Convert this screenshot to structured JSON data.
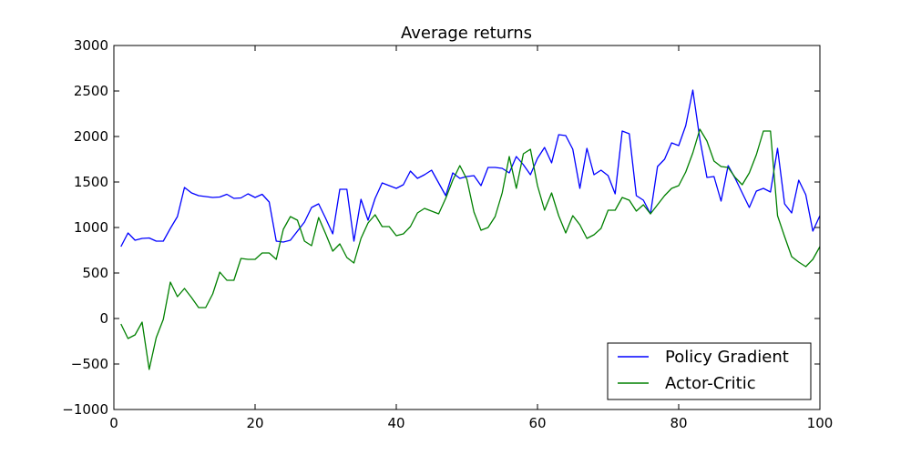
{
  "chart_data": {
    "type": "line",
    "title": "Average returns",
    "xlabel": "",
    "ylabel": "",
    "xlim": [
      0,
      100
    ],
    "ylim": [
      -1000,
      3000
    ],
    "x_ticks": [
      0,
      20,
      40,
      60,
      80,
      100
    ],
    "x_tick_labels": [
      "0",
      "20",
      "40",
      "60",
      "80",
      "100"
    ],
    "y_ticks": [
      -1000,
      -500,
      0,
      500,
      1000,
      1500,
      2000,
      2500,
      3000
    ],
    "y_tick_labels": [
      "−1000",
      "−500",
      "0",
      "500",
      "1000",
      "1500",
      "2000",
      "2500",
      "3000"
    ],
    "grid": false,
    "legend_position": "bottom-right",
    "x": [
      1,
      2,
      3,
      4,
      5,
      6,
      7,
      8,
      9,
      10,
      11,
      12,
      13,
      14,
      15,
      16,
      17,
      18,
      19,
      20,
      21,
      22,
      23,
      24,
      25,
      26,
      27,
      28,
      29,
      30,
      31,
      32,
      33,
      34,
      35,
      36,
      37,
      38,
      39,
      40,
      41,
      42,
      43,
      44,
      45,
      46,
      47,
      48,
      49,
      50,
      51,
      52,
      53,
      54,
      55,
      56,
      57,
      58,
      59,
      60,
      61,
      62,
      63,
      64,
      65,
      66,
      67,
      68,
      69,
      70,
      71,
      72,
      73,
      74,
      75,
      76,
      77,
      78,
      79,
      80,
      81,
      82,
      83,
      84,
      85,
      86,
      87,
      88,
      89,
      90,
      91,
      92,
      93,
      94,
      95,
      96,
      97,
      98,
      99,
      100
    ],
    "series": [
      {
        "name": "Policy Gradient",
        "color": "#0000ff",
        "values": [
          790,
          940,
          860,
          880,
          885,
          850,
          850,
          990,
          1120,
          1440,
          1380,
          1350,
          1340,
          1330,
          1335,
          1365,
          1320,
          1325,
          1370,
          1330,
          1365,
          1280,
          850,
          840,
          860,
          960,
          1060,
          1220,
          1260,
          1100,
          930,
          1420,
          1420,
          850,
          1310,
          1080,
          1320,
          1490,
          1460,
          1430,
          1470,
          1620,
          1540,
          1580,
          1630,
          1490,
          1350,
          1600,
          1540,
          1560,
          1570,
          1460,
          1660,
          1660,
          1650,
          1600,
          1780,
          1690,
          1580,
          1760,
          1880,
          1710,
          2020,
          2010,
          1860,
          1430,
          1870,
          1580,
          1630,
          1570,
          1370,
          2060,
          2030,
          1350,
          1300,
          1150,
          1670,
          1750,
          1930,
          1900,
          2120,
          2510,
          1970,
          1550,
          1560,
          1290,
          1680,
          1540,
          1380,
          1220,
          1400,
          1430,
          1390,
          1870,
          1260,
          1160,
          1520,
          1360,
          960,
          1130
        ]
      },
      {
        "name": "Actor-Critic",
        "color": "#008000",
        "values": [
          -60,
          -220,
          -180,
          -40,
          -560,
          -210,
          -10,
          400,
          240,
          330,
          230,
          120,
          120,
          270,
          510,
          420,
          420,
          660,
          650,
          650,
          720,
          720,
          650,
          980,
          1120,
          1080,
          850,
          800,
          1110,
          930,
          740,
          820,
          670,
          610,
          880,
          1050,
          1140,
          1010,
          1010,
          910,
          930,
          1010,
          1160,
          1210,
          1180,
          1150,
          1320,
          1520,
          1680,
          1530,
          1170,
          970,
          1000,
          1120,
          1380,
          1780,
          1430,
          1810,
          1860,
          1460,
          1190,
          1380,
          1130,
          940,
          1130,
          1030,
          880,
          920,
          990,
          1190,
          1190,
          1330,
          1300,
          1180,
          1250,
          1150,
          1250,
          1350,
          1430,
          1460,
          1610,
          1820,
          2080,
          1950,
          1730,
          1670,
          1660,
          1550,
          1470,
          1600,
          1800,
          2060,
          2060,
          1130,
          900,
          680,
          620,
          570,
          650,
          790
        ]
      }
    ]
  }
}
